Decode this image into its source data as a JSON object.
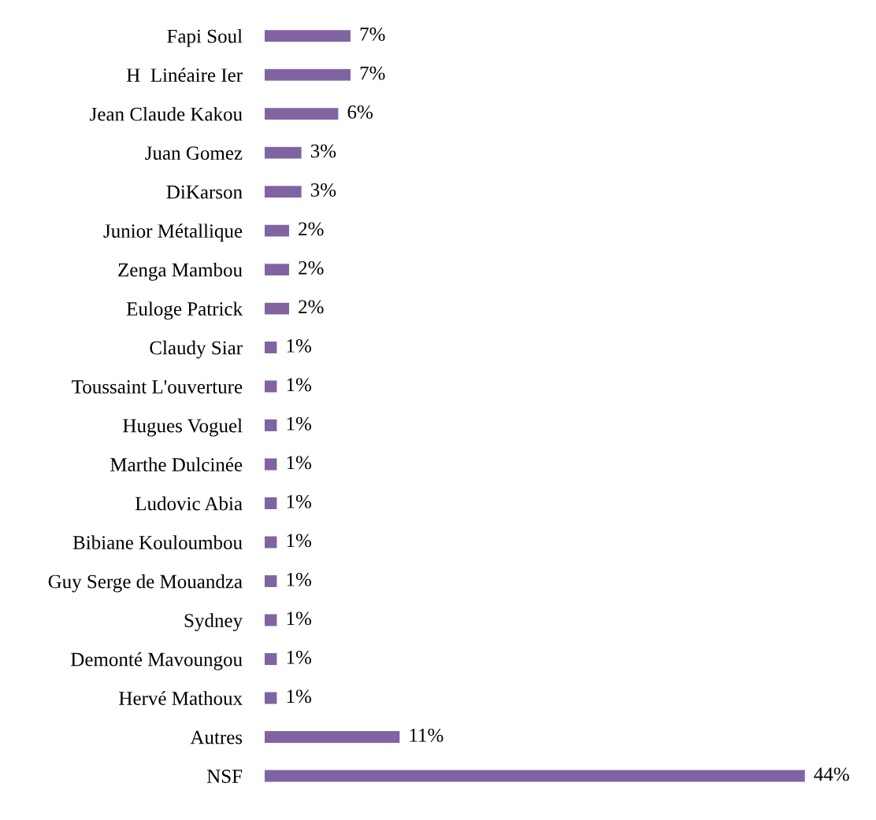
{
  "chart_data": {
    "type": "bar",
    "orientation": "horizontal",
    "categories": [
      "Fapi Soul",
      "H  Linéaire Ier",
      "Jean Claude Kakou",
      "Juan Gomez",
      "DiKarson",
      "Junior Métallique",
      "Zenga Mambou",
      "Euloge Patrick",
      "Claudy Siar",
      "Toussaint L'ouverture",
      "Hugues Voguel",
      "Marthe Dulcinée",
      "Ludovic Abia",
      "Bibiane Kouloumbou",
      "Guy Serge de Mouandza",
      "Sydney",
      "Demonté Mavoungou",
      "Hervé Mathoux",
      "Autres",
      "NSF"
    ],
    "values": [
      7,
      7,
      6,
      3,
      3,
      2,
      2,
      2,
      1,
      1,
      1,
      1,
      1,
      1,
      1,
      1,
      1,
      1,
      11,
      44
    ],
    "value_labels": [
      "7%",
      "7%",
      "6%",
      "3%",
      "3%",
      "2%",
      "2%",
      "2%",
      "1%",
      "1%",
      "1%",
      "1%",
      "1%",
      "1%",
      "1%",
      "1%",
      "1%",
      "1%",
      "11%",
      "44%"
    ],
    "color": "#8064a2",
    "grid": false,
    "legend": false
  }
}
